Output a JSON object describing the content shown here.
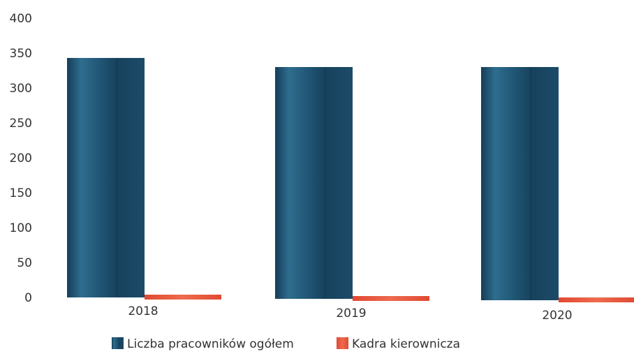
{
  "chart_data": {
    "type": "bar",
    "categories": [
      "2018",
      "2019",
      "2020"
    ],
    "series": [
      {
        "name": "Liczba pracowników ogółem",
        "color": "#1f4f6e",
        "values": [
          343,
          330,
          330
        ]
      },
      {
        "name": "Kadra kierownicza",
        "color": "#e9573d",
        "values": [
          5,
          5,
          5
        ]
      }
    ],
    "ylim": [
      0,
      400
    ],
    "yticks": [
      0,
      50,
      100,
      150,
      200,
      250,
      300,
      350,
      400
    ],
    "grid": false,
    "legend": "bottom"
  }
}
